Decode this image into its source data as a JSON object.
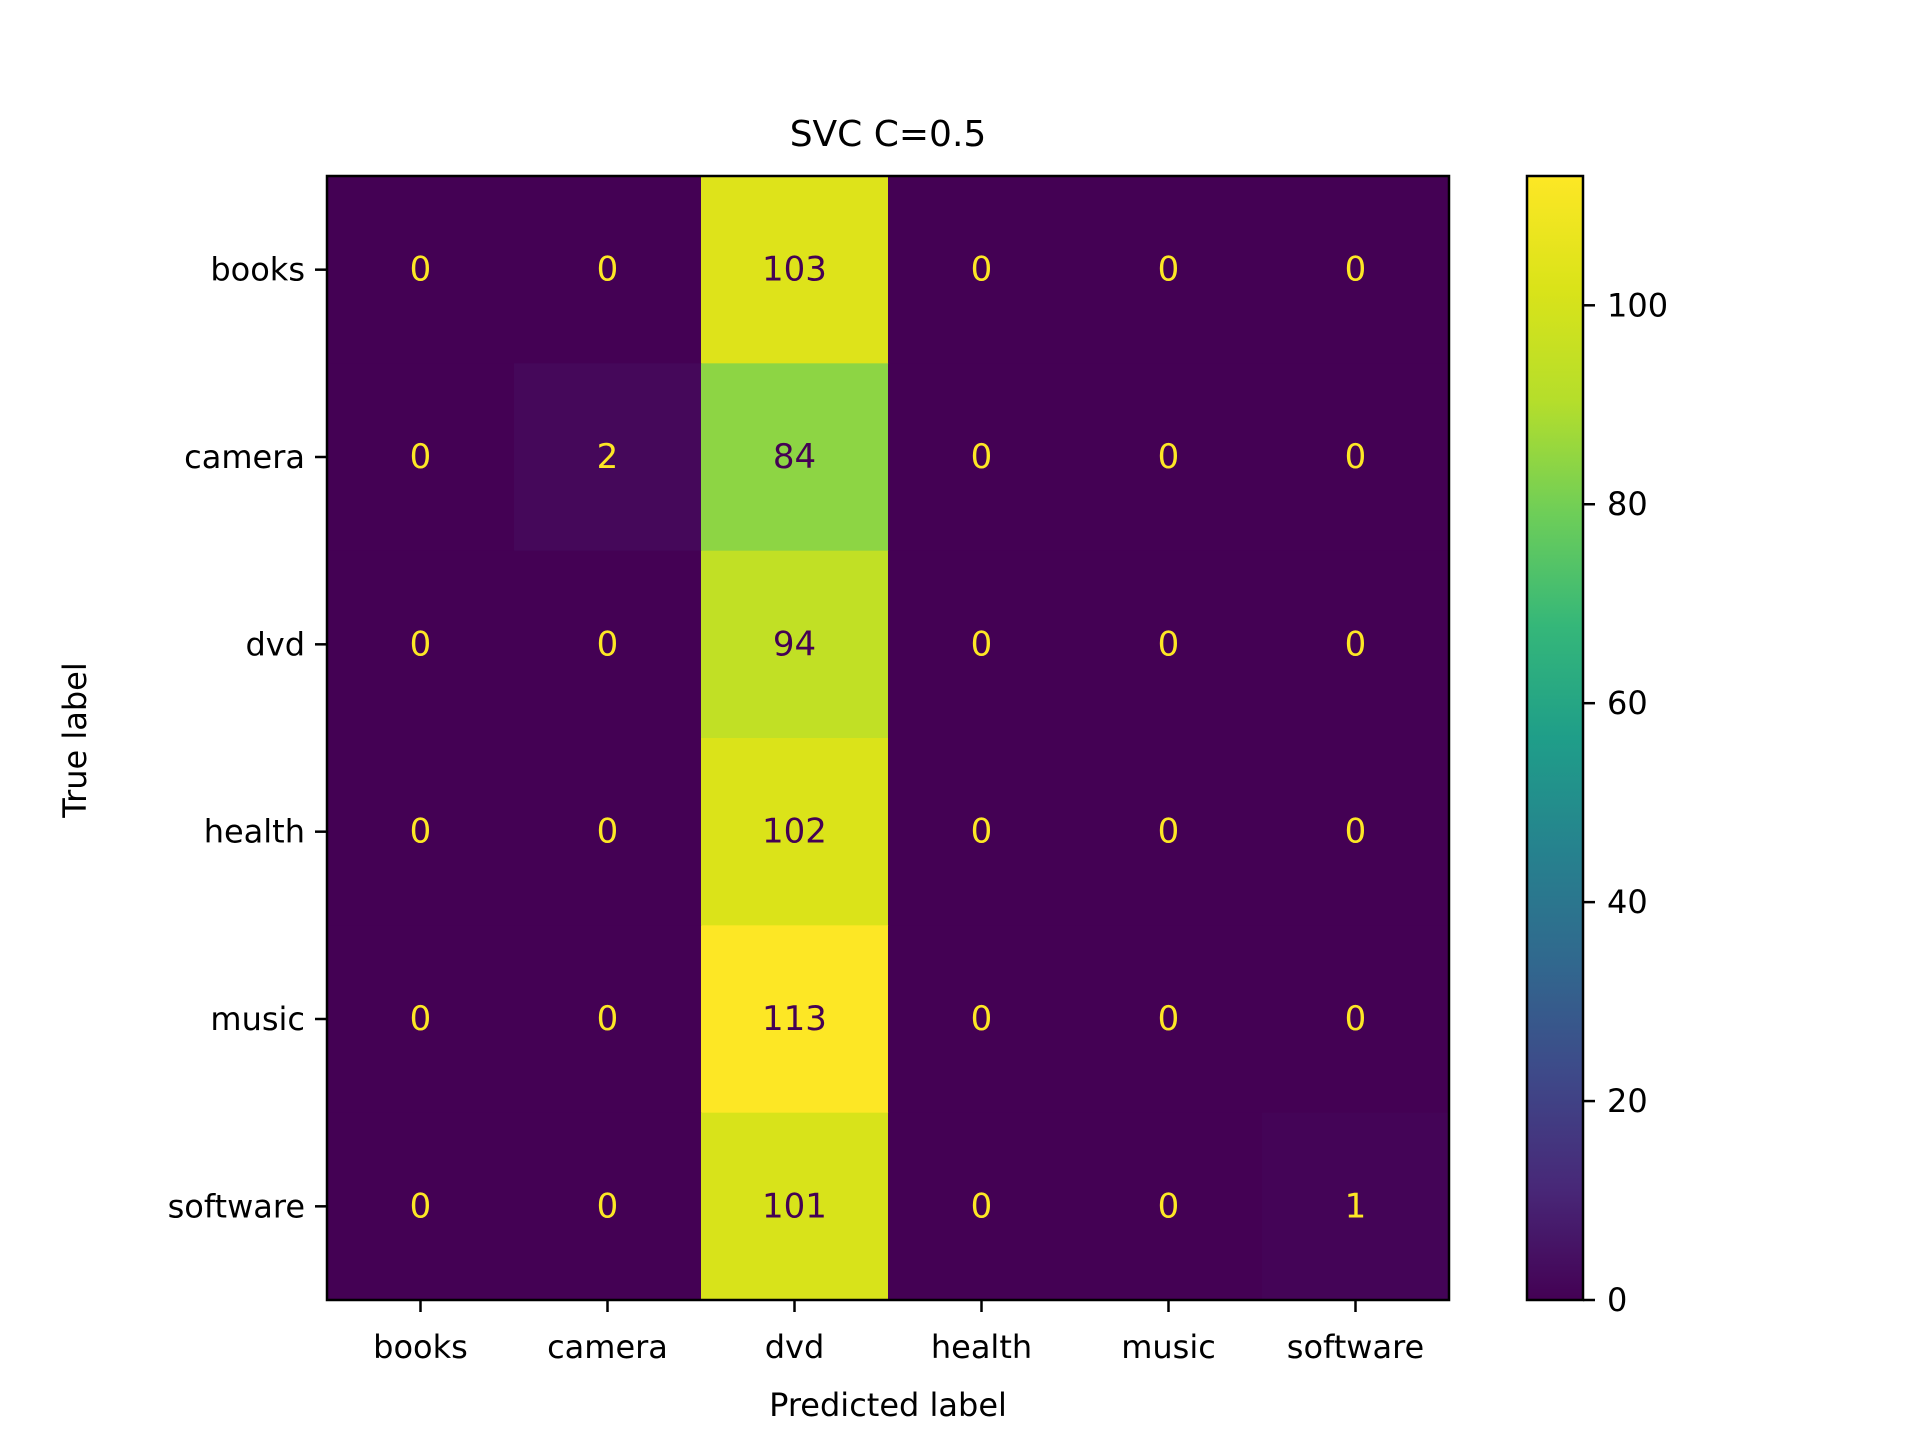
{
  "chart_data": {
    "type": "heatmap",
    "title": "SVC C=0.5",
    "xlabel": "Predicted label",
    "ylabel": "True label",
    "x_categories": [
      "books",
      "camera",
      "dvd",
      "health",
      "music",
      "software"
    ],
    "y_categories": [
      "books",
      "camera",
      "dvd",
      "health",
      "music",
      "software"
    ],
    "values": [
      [
        0,
        0,
        103,
        0,
        0,
        0
      ],
      [
        0,
        2,
        84,
        0,
        0,
        0
      ],
      [
        0,
        0,
        94,
        0,
        0,
        0
      ],
      [
        0,
        0,
        102,
        0,
        0,
        0
      ],
      [
        0,
        0,
        113,
        0,
        0,
        0
      ],
      [
        0,
        0,
        101,
        0,
        0,
        1
      ]
    ],
    "colorbar": {
      "range": [
        0,
        113
      ],
      "ticks": [
        0,
        20,
        40,
        60,
        80,
        100
      ],
      "colormap": "viridis"
    },
    "label_colors": {
      "dark_cell": "#fde725",
      "light_cell": "#440154"
    }
  }
}
